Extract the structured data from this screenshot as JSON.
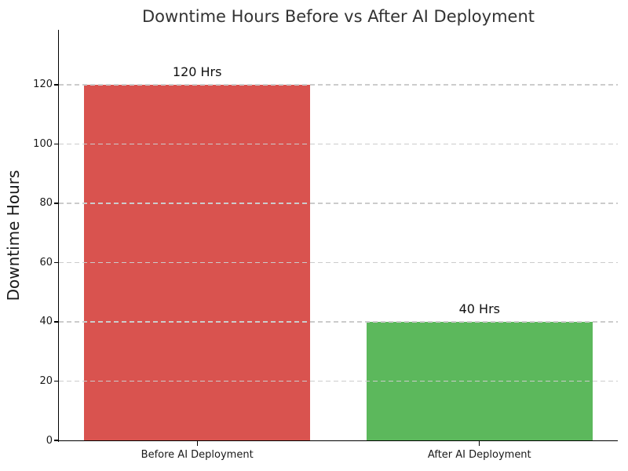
{
  "chart_data": {
    "type": "bar",
    "title": "Downtime Hours Before vs After AI Deployment",
    "ylabel": "Downtime Hours",
    "xlabel": "",
    "categories": [
      "Before AI Deployment",
      "After AI Deployment"
    ],
    "values": [
      120,
      40
    ],
    "bar_labels": [
      "120 Hrs",
      "40 Hrs"
    ],
    "bar_colors": [
      "#d9534f",
      "#5cb85c"
    ],
    "yticks": [
      0,
      20,
      40,
      60,
      80,
      100,
      120
    ],
    "ylim": [
      0,
      138.5
    ],
    "xlim": [
      -0.49,
      1.49
    ],
    "bar_width": 0.8,
    "grid": {
      "axis": "y",
      "style": "dashed",
      "color": "#cccccc"
    },
    "legend": "none",
    "colors": {
      "background": "#ffffff",
      "title": "#333333",
      "tick_label": "#1a1a1a",
      "spine": "#000000",
      "grid": "#cccccc"
    }
  }
}
